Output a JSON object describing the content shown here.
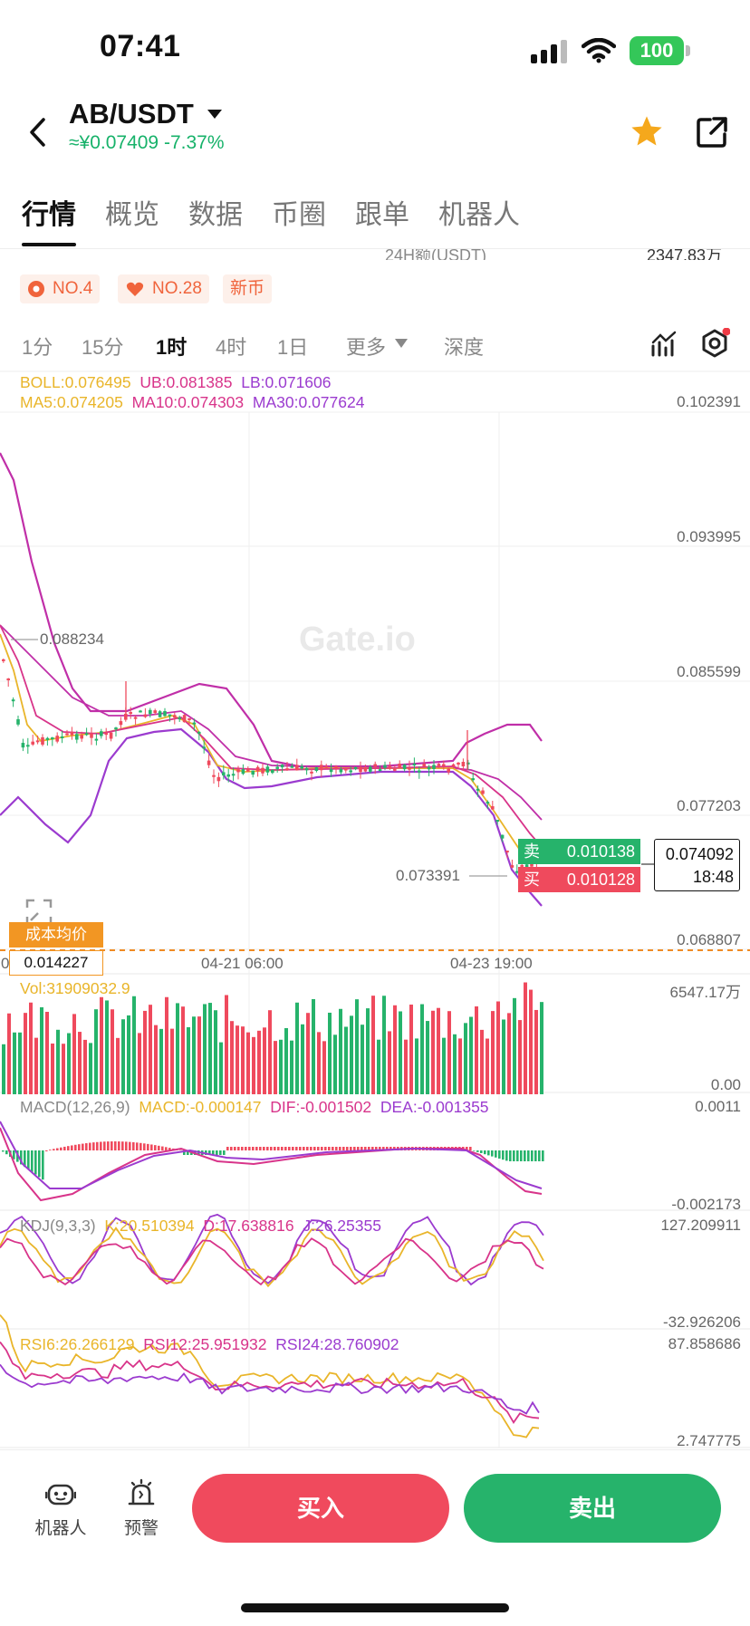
{
  "status": {
    "time": "07:41",
    "battery": "100"
  },
  "header": {
    "pair": "AB/USDT",
    "price_change": "≈¥0.07409 -7.37%"
  },
  "tabs": [
    "行情",
    "概览",
    "数据",
    "币圈",
    "跟单",
    "机器人"
  ],
  "stats": {
    "partial_label": "24H额(USDT)",
    "partial_value": "2347.83万"
  },
  "badges": [
    "NO.4",
    "NO.28",
    "新币"
  ],
  "intervals": [
    "1分",
    "15分",
    "1时",
    "4时",
    "1日",
    "更多",
    "深度"
  ],
  "boll_line": {
    "boll": "BOLL:0.076495",
    "ub": "UB:0.081385",
    "lb": "LB:0.071606"
  },
  "ma_line": {
    "ma5": "MA5:0.074205",
    "ma10": "MA10:0.074303",
    "ma30": "MA30:0.077624"
  },
  "price_axis": [
    "0.102391",
    "0.093995",
    "0.085599",
    "0.077203",
    "0.068807"
  ],
  "annotations": {
    "high_marker": "0.088234",
    "low_marker": "0.073391",
    "sell_label": "卖",
    "sell_value": "0.010138",
    "buy_label": "买",
    "buy_value": "0.010128",
    "last_price": "0.074092",
    "countdown": "18:48",
    "cost_label": "成本均价",
    "cost_value": "0.014227"
  },
  "time_axis": [
    "0",
    "04-21 06:00",
    "04-23 19:00"
  ],
  "volume": {
    "label": "Vol:31909032.9",
    "max": "6547.17万",
    "min": "0.00"
  },
  "macd": {
    "name": "MACD(12,26,9)",
    "macd": "MACD:-0.000147",
    "dif": "DIF:-0.001502",
    "dea": "DEA:-0.001355",
    "max": "0.0011",
    "min": "-0.002173"
  },
  "kdj": {
    "name": "KDJ(9,3,3)",
    "k": "K:20.510394",
    "d": "D:17.638816",
    "j": "J:26.25355",
    "max": "127.209911",
    "min": "-32.926206"
  },
  "rsi": {
    "rsi6": "RSI6:26.266129",
    "rsi12": "RSI12:25.951932",
    "rsi24": "RSI24:28.760902",
    "max": "87.858686",
    "min": "2.747775"
  },
  "footer": {
    "robot": "机器人",
    "alert": "预警",
    "buy": "买入",
    "sell": "卖出"
  },
  "watermark": "Gate.io",
  "colors": {
    "up": "#26b36b",
    "down": "#ef4a5d",
    "ma5": "#e9b52a",
    "ma10": "#d8348a",
    "ma30": "#9b3bcf",
    "boll": "#c02fa8"
  }
}
